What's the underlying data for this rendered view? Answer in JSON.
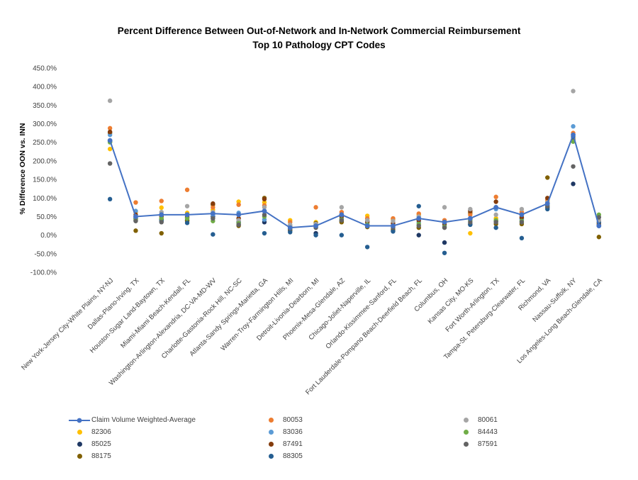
{
  "title": {
    "line1": "Percent Difference Between Out-of-Network and In-Network Commercial Reimbursement",
    "line2": "Top 10 Pathology CPT Codes"
  },
  "y_axis": {
    "label": "% Difference OON vs. INN",
    "min": -100,
    "max": 450,
    "step": 50,
    "tick_format": "one-decimal-percent"
  },
  "chart_data": {
    "type": "scatter",
    "title": "Percent Difference Between Out-of-Network and In-Network Commercial Reimbursement Top 10 Pathology CPT Codes",
    "ylabel": "% Difference OON vs. INN",
    "ylim": [
      -100,
      450
    ],
    "grid": false,
    "legend_position": "bottom",
    "categories": [
      "New York-Jersey City-White Plains, NY-NJ",
      "Dallas-Plano-Irving, TX",
      "Houston-Sugar Land-Baytown, TX",
      "Miami-Miami Beach-Kendall, FL",
      "Washington-Arlington-Alexandria, DC-VA-MD-WV",
      "Charlotte-Gastonia-Rock Hill, NC-SC",
      "Atlanta-Sandy Springs-Marietta, GA",
      "Warren-Troy-Farmington Hills, MI",
      "Detroit-Livonia-Dearborn, MI",
      "Phoenix-Mesa-Glendale, AZ",
      "Chicago-Joliet-Naperville, IL",
      "Orlando-Kissimmee-Sanford, FL",
      "Fort Lauderdale-Pompano Beach-Deerfield Beach, FL",
      "Columbus, OH",
      "Kansas City, MO-KS",
      "Fort Worth-Arlington, TX",
      "Tampa-St. Petersburg-Clearwater, FL",
      "Richmond, VA",
      "Nassau-Suffolk, NY",
      "Los Angeles-Long Beach-Glendale, CA"
    ],
    "average_line": {
      "name": "Claim Volume Weighted-Average",
      "color": "#4472C4",
      "values": [
        255,
        50,
        55,
        55,
        58,
        55,
        65,
        20,
        25,
        55,
        25,
        25,
        45,
        35,
        45,
        75,
        55,
        85,
        270,
        25
      ]
    },
    "series": [
      {
        "name": "82306",
        "color": "#FFC000",
        "values": [
          232,
          62,
          74,
          60,
          68,
          90,
          88,
          40,
          35,
          55,
          52,
          42,
          55,
          38,
          5,
          45,
          55,
          90,
          262,
          32
        ]
      },
      {
        "name": "85025",
        "color": "#1F3864",
        "values": [
          252,
          45,
          42,
          40,
          50,
          35,
          35,
          12,
          5,
          38,
          38,
          12,
          0,
          -20,
          30,
          38,
          45,
          75,
          138,
          25
        ]
      },
      {
        "name": "88175",
        "color": "#806000",
        "values": [
          275,
          12,
          5,
          38,
          82,
          25,
          100,
          15,
          32,
          35,
          22,
          15,
          20,
          35,
          60,
          30,
          30,
          155,
          258,
          -5
        ]
      },
      {
        "name": "80053",
        "color": "#ED7D31",
        "values": [
          288,
          88,
          92,
          122,
          75,
          82,
          80,
          35,
          75,
          62,
          45,
          45,
          58,
          40,
          55,
          103,
          62,
          95,
          275,
          35
        ]
      },
      {
        "name": "83036",
        "color": "#5B9BD5",
        "values": [
          270,
          65,
          55,
          50,
          55,
          60,
          42,
          25,
          25,
          45,
          30,
          28,
          35,
          25,
          45,
          70,
          42,
          85,
          293,
          28
        ]
      },
      {
        "name": "87491",
        "color": "#843C0C",
        "values": [
          278,
          55,
          50,
          48,
          85,
          45,
          97,
          22,
          28,
          50,
          35,
          32,
          40,
          30,
          65,
          90,
          48,
          100,
          255,
          30
        ]
      },
      {
        "name": "88305",
        "color": "#255E91",
        "values": [
          97,
          40,
          38,
          33,
          2,
          30,
          5,
          8,
          0,
          0,
          -32,
          10,
          78,
          -48,
          28,
          20,
          -8,
          70,
          265,
          35
        ]
      },
      {
        "name": "80061",
        "color": "#A5A5A5",
        "values": [
          362,
          50,
          62,
          78,
          62,
          40,
          75,
          28,
          30,
          75,
          40,
          38,
          50,
          75,
          70,
          55,
          70,
          88,
          388,
          40
        ]
      },
      {
        "name": "84443",
        "color": "#70AD47",
        "values": [
          250,
          42,
          45,
          45,
          38,
          32,
          50,
          20,
          22,
          42,
          28,
          25,
          30,
          22,
          40,
          40,
          38,
          80,
          252,
          55
        ]
      },
      {
        "name": "87591",
        "color": "#636363",
        "values": [
          193,
          38,
          35,
          55,
          45,
          28,
          55,
          18,
          20,
          40,
          25,
          20,
          25,
          20,
          35,
          35,
          35,
          78,
          185,
          48
        ]
      }
    ]
  },
  "legend": {
    "columns": [
      [
        "Claim Volume Weighted-Average",
        "82306",
        "85025",
        "88175"
      ],
      [
        "80053",
        "83036",
        "87491",
        "88305"
      ],
      [
        "80061",
        "84443",
        "87591"
      ]
    ]
  }
}
